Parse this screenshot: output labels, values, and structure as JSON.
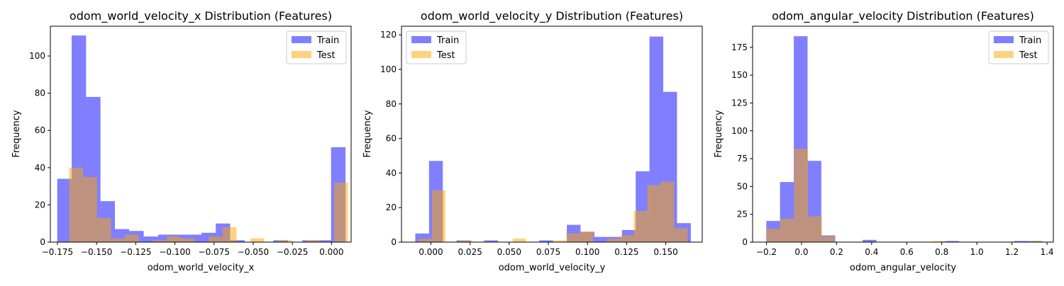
{
  "colors": {
    "train": "#0000ff",
    "test": "#ffa500",
    "train_alpha": 0.5,
    "test_alpha": 0.5
  },
  "chart_data": [
    {
      "type": "bar",
      "title": "odom_world_velocity_x Distribution (Features)",
      "xlabel": "odom_world_velocity_x",
      "ylabel": "Frequency",
      "xlim": [
        -0.1795,
        0.0125
      ],
      "ylim": [
        0,
        116
      ],
      "xticks": [
        -0.175,
        -0.15,
        -0.125,
        -0.1,
        -0.075,
        -0.05,
        -0.025,
        0.0
      ],
      "xtick_labels": [
        "−0.175",
        "−0.150",
        "−0.125",
        "−0.100",
        "−0.075",
        "−0.050",
        "−0.025",
        "0.000"
      ],
      "yticks": [
        0,
        20,
        40,
        60,
        80,
        100
      ],
      "legend": "top-right",
      "series": [
        {
          "name": "Train",
          "bin_edges": [
            -0.1751,
            -0.1659,
            -0.1567,
            -0.1475,
            -0.1383,
            -0.1291,
            -0.1199,
            -0.1107,
            -0.1015,
            -0.0923,
            -0.0831,
            -0.0739,
            -0.0647,
            -0.0555,
            -0.0463,
            -0.0371,
            -0.0279,
            -0.0187,
            -0.0095,
            -0.0003,
            0.0089
          ],
          "counts": [
            34,
            111,
            78,
            22,
            7,
            6,
            3,
            4,
            4,
            4,
            5,
            10,
            1,
            0,
            0,
            1,
            0,
            1,
            1,
            51
          ]
        },
        {
          "name": "Test",
          "bin_edges": [
            -0.1675,
            -0.1586,
            -0.1497,
            -0.1408,
            -0.1319,
            -0.123,
            -0.1141,
            -0.1052,
            -0.0963,
            -0.0874,
            -0.0785,
            -0.0696,
            -0.0607,
            -0.0518,
            -0.0429,
            -0.034,
            -0.0251,
            -0.0162,
            -0.0073,
            0.0016,
            0.0105
          ],
          "counts": [
            40,
            35,
            13,
            2,
            4,
            0,
            1,
            3,
            2,
            0,
            3,
            8,
            0,
            2,
            0,
            1,
            0,
            1,
            0,
            32
          ]
        }
      ]
    },
    {
      "type": "bar",
      "title": "odom_world_velocity_y Distribution (Features)",
      "xlabel": "odom_world_velocity_y",
      "ylabel": "Frequency",
      "xlim": [
        -0.0188,
        0.1733
      ],
      "ylim": [
        0,
        125
      ],
      "xticks": [
        0.0,
        0.025,
        0.05,
        0.075,
        0.1,
        0.125,
        0.15
      ],
      "xtick_labels": [
        "0.000",
        "0.025",
        "0.050",
        "0.075",
        "0.100",
        "0.125",
        "0.150"
      ],
      "yticks": [
        0,
        20,
        40,
        60,
        80,
        100,
        120
      ],
      "legend": "top-left",
      "series": [
        {
          "name": "Train",
          "bin_edges": [
            -0.01,
            -0.0012,
            0.0076,
            0.0164,
            0.0252,
            0.034,
            0.0428,
            0.0516,
            0.0604,
            0.0692,
            0.078,
            0.0868,
            0.0956,
            0.1044,
            0.1132,
            0.122,
            0.1308,
            0.1396,
            0.1484,
            0.1572,
            0.166
          ],
          "counts": [
            5,
            47,
            0,
            1,
            0,
            1,
            0,
            0,
            0,
            1,
            0,
            10,
            6,
            3,
            3,
            7,
            41,
            119,
            87,
            11
          ]
        },
        {
          "name": "Test",
          "bin_edges": [
            -0.008,
            0.0006,
            0.0092,
            0.0178,
            0.0264,
            0.035,
            0.0436,
            0.0522,
            0.0608,
            0.0694,
            0.078,
            0.0866,
            0.0952,
            0.1038,
            0.1124,
            0.121,
            0.1296,
            0.1382,
            0.1468,
            0.1554,
            0.164
          ],
          "counts": [
            2,
            30,
            0,
            1,
            0,
            0,
            0,
            2,
            0,
            0,
            1,
            5,
            6,
            0,
            2,
            4,
            18,
            33,
            35,
            8
          ]
        }
      ]
    },
    {
      "type": "bar",
      "title": "odom_angular_velocity Distribution (Features)",
      "xlabel": "odom_angular_velocity",
      "ylabel": "Frequency",
      "xlim": [
        -0.2789,
        1.4363
      ],
      "ylim": [
        0,
        194
      ],
      "xticks": [
        -0.2,
        0.0,
        0.2,
        0.4,
        0.6,
        0.8,
        1.0,
        1.2,
        1.4
      ],
      "xtick_labels": [
        "−0.2",
        "0.0",
        "0.2",
        "0.4",
        "0.6",
        "0.8",
        "1.0",
        "1.2",
        "1.4"
      ],
      "yticks": [
        0,
        25,
        50,
        75,
        100,
        125,
        150,
        175
      ],
      "legend": "top-right",
      "series": [
        {
          "name": "Train",
          "bin_edges": [
            -0.201,
            -0.1225,
            -0.044,
            0.0345,
            0.113,
            0.1915,
            0.27,
            0.3485,
            0.427,
            0.5055,
            0.584,
            0.6625,
            0.741,
            0.8195,
            0.898,
            0.9765,
            1.055,
            1.1335,
            1.212,
            1.2905,
            1.369
          ],
          "counts": [
            19,
            54,
            185,
            73,
            6,
            0,
            0,
            2,
            0,
            0,
            0,
            0,
            0,
            1,
            0,
            0,
            0,
            0,
            1,
            1
          ]
        },
        {
          "name": "Test",
          "bin_edges": [
            -0.2,
            -0.121,
            -0.042,
            0.037,
            0.116,
            0.195,
            0.274,
            0.353,
            0.432,
            0.511,
            0.59,
            0.669,
            0.748,
            0.827,
            0.906,
            0.985,
            1.064,
            1.143,
            1.222,
            1.301,
            1.38
          ],
          "counts": [
            12,
            21,
            84,
            23,
            5,
            0,
            0,
            0,
            0,
            0,
            0,
            0,
            1,
            0,
            0,
            0,
            0,
            0,
            0,
            1
          ]
        }
      ]
    }
  ]
}
